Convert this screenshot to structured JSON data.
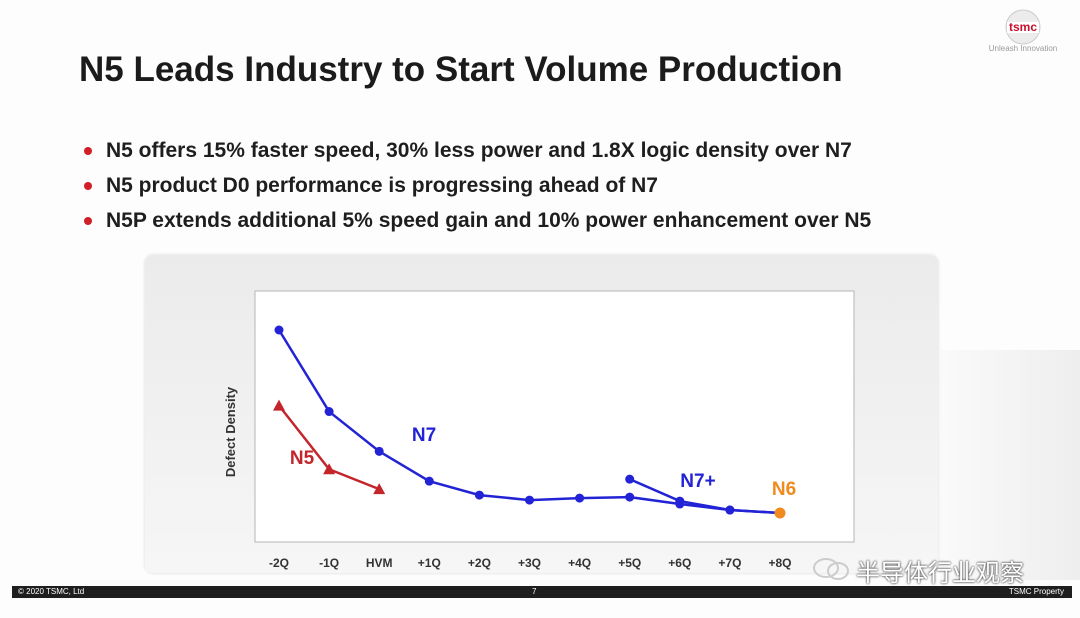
{
  "slide": {
    "title": "N5 Leads Industry to Start Volume Production",
    "bullets": [
      "N5 offers 15% faster speed, 30% less power and 1.8X logic density over N7",
      "N5 product D0 performance is progressing ahead of N7",
      "N5P extends additional 5% speed gain and 10% power enhancement over N5"
    ],
    "logo": {
      "text": "tsmc",
      "tagline": "Unleash Innovation"
    },
    "footer": {
      "left": "© 2020 TSMC, Ltd",
      "center": "7",
      "right": "TSMC Property"
    },
    "watermark": "半导体行业观察",
    "colors": {
      "accent": "#d01f26",
      "n7": "#2323d6",
      "n5": "#c3252b",
      "n6": "#f08a1f"
    }
  },
  "chart_data": {
    "type": "line",
    "ylabel": "Defect Density",
    "categories": [
      "-2Q",
      "-1Q",
      "HVM",
      "+1Q",
      "+2Q",
      "+3Q",
      "+4Q",
      "+5Q",
      "+6Q",
      "+7Q",
      "+8Q"
    ],
    "y_ticks_shown": false,
    "series": [
      {
        "name": "N7",
        "color": "#2323d6",
        "marker": "circle",
        "values": [
          1.0,
          0.59,
          0.39,
          0.24,
          0.17,
          0.145,
          0.155,
          0.16,
          0.125,
          0.095,
          0.08
        ]
      },
      {
        "name": "N5",
        "color": "#c3252b",
        "marker": "triangle",
        "values": [
          0.62,
          0.3,
          0.2,
          null,
          null,
          null,
          null,
          null,
          null,
          null,
          null
        ]
      },
      {
        "name": "N7+",
        "color": "#2323d6",
        "marker": "circle",
        "values": [
          null,
          null,
          null,
          null,
          null,
          null,
          null,
          0.25,
          0.14,
          0.095,
          0.08
        ]
      },
      {
        "name": "N6",
        "color": "#f08a1f",
        "marker": "circle",
        "values": [
          null,
          null,
          null,
          null,
          null,
          null,
          null,
          null,
          null,
          null,
          0.08
        ]
      }
    ]
  }
}
